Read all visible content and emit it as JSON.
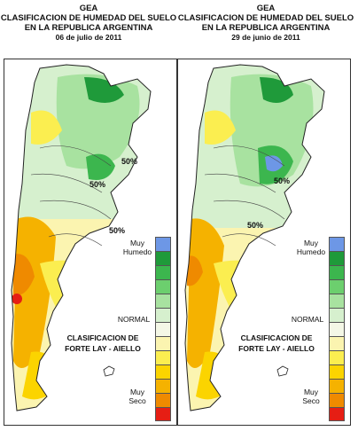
{
  "left": {
    "org": "GEA",
    "title1": "CLASIFICACION DE HUMEDAD DEL SUELO",
    "title2": "EN LA REPUBLICA ARGENTINA",
    "date": "06 de julio de 2011",
    "contours": [
      "50%",
      "50%",
      "50%"
    ]
  },
  "right": {
    "org": "GEA",
    "title1": "CLASIFICACION DE HUMEDAD DEL SUELO",
    "title2": "EN LA REPUBLICA ARGENTINA",
    "date": "29 de junio de 2011",
    "contours": [
      "50%",
      "50%"
    ]
  },
  "legend": {
    "wet_line1": "Muy",
    "wet_line2": "Humedo",
    "normal": "NORMAL",
    "dry_line1": "Muy",
    "dry_line2": "Seco",
    "colors": [
      "#6d97e6",
      "#1f9a3a",
      "#3cb64e",
      "#6ccf6e",
      "#a8e2a0",
      "#d6f0ce",
      "#f4f7e6",
      "#fbf4b0",
      "#fbee50",
      "#fbd400",
      "#f5b200",
      "#ef8a00",
      "#e61e14"
    ]
  },
  "classification": {
    "line1": "CLASIFICACION DE",
    "line2": "FORTE LAY - AIELLO"
  }
}
